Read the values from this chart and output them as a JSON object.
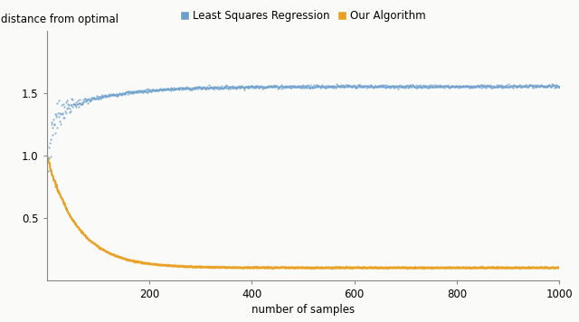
{
  "xlabel": "number of samples",
  "ylabel": "distance from optimal",
  "xlim": [
    0,
    1000
  ],
  "ylim": [
    0,
    2.0
  ],
  "yticks": [
    0.5,
    1.0,
    1.5
  ],
  "xticks": [
    200,
    400,
    600,
    800,
    1000
  ],
  "lsr_color": "#6B9FCC",
  "our_color": "#E8A020",
  "legend_labels": [
    "Least Squares Regression",
    "Our Algorithm"
  ],
  "lsr_asymptote": 1.555,
  "our_initial": 1.0,
  "our_asymptote": 0.1,
  "n_points": 1000,
  "bg_color": "#FAFAF8",
  "figsize": [
    6.4,
    3.56
  ],
  "dpi": 100
}
